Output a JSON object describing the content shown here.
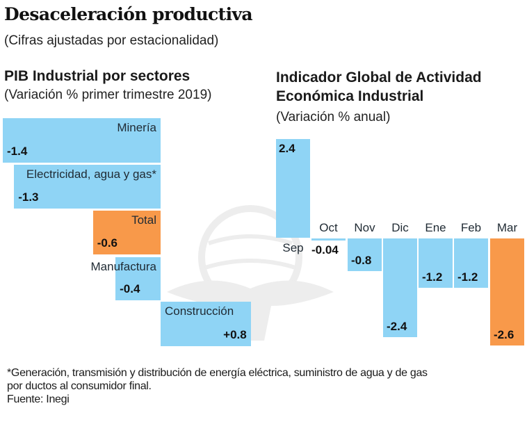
{
  "title": "Desaceleración productiva",
  "subtitle": "(Cifras ajustadas por estacionalidad)",
  "colors": {
    "blue": "#8fd4f5",
    "orange": "#f8994a",
    "text": "#1a1a1a"
  },
  "watermark_icon": "eagle-globe-logo",
  "chart_data": [
    {
      "type": "bar",
      "orientation": "horizontal-waterfall",
      "title": "PIB Industrial por sectores",
      "subtitle": "(Variación % primer trimestre 2019)",
      "categories": [
        "Minería",
        "Electricidad, agua y gas*",
        "Total",
        "Manufactura",
        "Construcción"
      ],
      "values": [
        -1.4,
        -1.3,
        -0.6,
        -0.4,
        0.8
      ],
      "value_labels": [
        "-1.4",
        "-1.3",
        "-0.6",
        "-0.4",
        "+0.8"
      ],
      "highlight": [
        "blue",
        "blue",
        "orange",
        "blue",
        "blue"
      ],
      "xlim": [
        -1.4,
        0.8
      ],
      "grid": false,
      "legend": "none"
    },
    {
      "type": "bar",
      "orientation": "vertical",
      "title": "Indicador Global  de Actividad Económica Industrial",
      "title_lines": [
        "Indicador Global  de Actividad",
        "Económica Industrial"
      ],
      "subtitle": "(Variación % anual)",
      "categories": [
        "Sep",
        "Oct",
        "Nov",
        "Dic",
        "Ene",
        "Feb",
        "Mar"
      ],
      "values": [
        2.4,
        -0.04,
        -0.8,
        -2.4,
        -1.2,
        -1.2,
        -2.6
      ],
      "value_labels": [
        "2.4",
        "-0.04",
        "-0.8",
        "-2.4",
        "-1.2",
        "-1.2",
        "-2.6"
      ],
      "highlight": [
        "blue",
        "blue",
        "blue",
        "blue",
        "blue",
        "blue",
        "orange"
      ],
      "ylim": [
        -2.6,
        2.4
      ],
      "grid": false,
      "legend": "none"
    }
  ],
  "footnote": {
    "lines": [
      "*Generación, transmisión y distribución de energía eléctrica, suministro de agua y de gas",
      "por ductos al consumidor final."
    ],
    "source": "Fuente: Inegi"
  }
}
